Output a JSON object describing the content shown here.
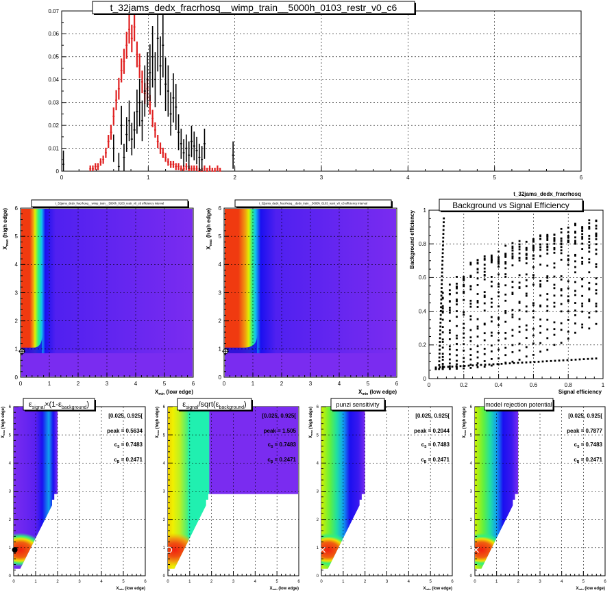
{
  "chart_data": [
    {
      "id": "hist",
      "type": "line",
      "title": "t_32jams_dedx_fracrhosq__wimp_train__5000h_0103_restr_v0_c6",
      "xlabel": "t_32jams_dedx_fracrhosq",
      "ylabel": "",
      "xlim": [
        0,
        6
      ],
      "ylim": [
        0,
        0.07
      ],
      "x_ticks": [
        "0",
        "1",
        "2",
        "3",
        "4",
        "5",
        "6"
      ],
      "y_ticks": [
        "0",
        "0.01",
        "0.02",
        "0.03",
        "0.04",
        "0.05",
        "0.06",
        "0.07"
      ],
      "grid": true,
      "series": [
        {
          "color": "#e02020",
          "x": [
            0.33,
            0.36,
            0.39,
            0.42,
            0.45,
            0.48,
            0.51,
            0.54,
            0.57,
            0.6,
            0.63,
            0.66,
            0.69,
            0.72,
            0.75,
            0.78,
            0.81,
            0.84,
            0.87,
            0.9,
            0.93,
            0.96,
            0.99,
            1.02,
            1.05,
            1.08,
            1.11,
            1.14,
            1.17,
            1.2,
            1.23,
            1.26,
            1.29,
            1.32,
            1.35,
            1.38,
            1.41,
            1.44,
            1.47,
            1.5,
            1.53,
            1.56,
            1.59,
            1.62,
            1.65,
            1.68,
            1.71,
            1.74,
            1.77,
            1.8,
            1.83
          ],
          "y": [
            0.001,
            0.001,
            0.002,
            0.002,
            0.004,
            0.005,
            0.008,
            0.013,
            0.017,
            0.024,
            0.031,
            0.036,
            0.044,
            0.048,
            0.055,
            0.062,
            0.058,
            0.063,
            0.051,
            0.046,
            0.039,
            0.034,
            0.036,
            0.029,
            0.023,
            0.018,
            0.013,
            0.01,
            0.008,
            0.006,
            0.004,
            0.003,
            0.003,
            0.002,
            0.002,
            0.001,
            0.001,
            0.002,
            0.001,
            0.001,
            0.001,
            0.001,
            0.0,
            0.0,
            0.001,
            0.0,
            0.001,
            0.0,
            0.0,
            0.001,
            0.0
          ]
        },
        {
          "color": "#000000",
          "x": [
            0.02,
            0.6,
            0.66,
            0.69,
            0.72,
            0.75,
            0.78,
            0.81,
            0.84,
            0.87,
            0.9,
            0.93,
            0.96,
            0.99,
            1.02,
            1.05,
            1.08,
            1.11,
            1.14,
            1.17,
            1.2,
            1.23,
            1.26,
            1.29,
            1.32,
            1.35,
            1.38,
            1.41,
            1.44,
            1.47,
            1.5,
            1.53,
            1.56,
            1.59,
            1.62,
            1.65,
            1.98
          ],
          "y": [
            0.003,
            0.01,
            0.002,
            0.02,
            0.006,
            0.016,
            0.022,
            0.014,
            0.018,
            0.026,
            0.03,
            0.022,
            0.035,
            0.04,
            0.043,
            0.05,
            0.04,
            0.058,
            0.046,
            0.055,
            0.038,
            0.035,
            0.025,
            0.032,
            0.028,
            0.017,
            0.012,
            0.008,
            0.01,
            0.007,
            0.013,
            0.011,
            0.009,
            0.006,
            0.005,
            0.012,
            0.007
          ]
        }
      ]
    },
    {
      "id": "eff-wimp",
      "type": "heatmap",
      "title": "t_32jams_dedx_fracrhosq__wimp_train__5000h_0103_restr_v0_c6 efficiency interval",
      "xlabel": "X_min (low edge)",
      "ylabel": "X_max (high edge)",
      "xlim": [
        0,
        6
      ],
      "ylim": [
        0,
        6
      ],
      "x_ticks": [
        "0",
        "1",
        "2",
        "3",
        "4",
        "5",
        "6"
      ],
      "y_ticks": [
        "0",
        "1",
        "2",
        "3",
        "4",
        "5",
        "6"
      ]
    },
    {
      "id": "eff-data",
      "type": "heatmap",
      "title": "t_32jams_dedx_fracrhosq__dedx_train__5000h_0103_restr_v0_c6 efficiency interval",
      "xlabel": "X_min (low edge)",
      "ylabel": "X_max (high edge)",
      "xlim": [
        0,
        6
      ],
      "ylim": [
        0,
        6
      ],
      "x_ticks": [
        "0",
        "1",
        "2",
        "3",
        "4",
        "5",
        "6"
      ],
      "y_ticks": [
        "0",
        "1",
        "2",
        "3",
        "4",
        "5",
        "6"
      ]
    },
    {
      "id": "roc",
      "type": "scatter",
      "title": "Background vs Signal Efficiency",
      "xlabel": "Signal efficiency",
      "ylabel": "Background efficiency",
      "xlim": [
        0,
        1
      ],
      "ylim": [
        0,
        1
      ],
      "x_ticks": [
        "0",
        "0.2",
        "0.4",
        "0.6",
        "0.8",
        "1"
      ],
      "y_ticks": [
        "0",
        "0.2",
        "0.4",
        "0.6",
        "0.8",
        "1"
      ]
    },
    {
      "id": "fom1",
      "type": "heatmap",
      "title_main": "ε",
      "title_sub": "signal",
      "title_mid": "×(1-ε",
      "title_sub2": "background",
      "title_end": ")",
      "interval": "[0.025, 0.925[",
      "peak": "peak = 0.5634",
      "cs": "c",
      "cs_sub": "S",
      "cs_val": " = 0.7483",
      "cb": "c",
      "cb_sub": "B",
      "cb_val": " = 0.2471",
      "xlabel_main": "X",
      "xlabel_sub": "min",
      "xlabel_rest": " (low edge)",
      "ylabel_main": "X",
      "ylabel_sub": "max",
      "ylabel_rest": " (high edge)",
      "xlim": [
        0,
        6
      ],
      "ylim": [
        0,
        6
      ],
      "x_ticks": [
        "0",
        "1",
        "2",
        "3",
        "4",
        "5",
        "6"
      ],
      "y_ticks": [
        "0",
        "1",
        "2",
        "3",
        "4",
        "5",
        "6"
      ]
    },
    {
      "id": "fom2",
      "type": "heatmap",
      "title_main": "ε",
      "title_sub": "signal",
      "title_mid": "/sqrt(ε",
      "title_sub2": "background",
      "title_end": ")",
      "interval": "[0.025, 0.925[",
      "peak": "peak = 1.505",
      "cs": "c",
      "cs_sub": "S",
      "cs_val": " = 0.7483",
      "cb": "c",
      "cb_sub": "B",
      "cb_val": " = 0.2471",
      "xlabel_main": "X",
      "xlabel_sub": "min",
      "xlabel_rest": " (low edge)",
      "ylabel_main": "X",
      "ylabel_sub": "max",
      "ylabel_rest": " (high edge)",
      "xlim": [
        0,
        6
      ],
      "ylim": [
        0,
        6
      ],
      "x_ticks": [
        "0",
        "1",
        "2",
        "3",
        "4",
        "5",
        "6"
      ],
      "y_ticks": [
        "0",
        "1",
        "2",
        "3",
        "4",
        "5",
        "6"
      ]
    },
    {
      "id": "fom3",
      "type": "heatmap",
      "title_main": "punzi sensitivity",
      "interval": "[0.025, 0.925[",
      "peak": "peak = 0.2044",
      "cs": "c",
      "cs_sub": "S",
      "cs_val": " = 0.7483",
      "cb": "c",
      "cb_sub": "B",
      "cb_val": " = 0.2471",
      "xlabel_main": "X",
      "xlabel_sub": "min",
      "xlabel_rest": " (low edge)",
      "ylabel_main": "X",
      "ylabel_sub": "max",
      "ylabel_rest": " (high edge)",
      "xlim": [
        0,
        6
      ],
      "ylim": [
        0,
        6
      ],
      "x_ticks": [
        "0",
        "1",
        "2",
        "3",
        "4",
        "5",
        "6"
      ],
      "y_ticks": [
        "0",
        "1",
        "2",
        "3",
        "4",
        "5",
        "6"
      ]
    },
    {
      "id": "fom4",
      "type": "heatmap",
      "title_main": "model rejection potential",
      "interval": "[0.025, 0.925[",
      "peak": "peak = 0.7877",
      "cs": "c",
      "cs_sub": "S",
      "cs_val": " = 0.7483",
      "cb": "c",
      "cb_sub": "B",
      "cb_val": " = 0.2471",
      "xlabel_main": "X",
      "xlabel_sub": "min",
      "xlabel_rest": " (low edge)",
      "ylabel_main": "X",
      "ylabel_sub": "max",
      "ylabel_rest": " (high edge)",
      "xlim": [
        0,
        6
      ],
      "ylim": [
        0,
        6
      ],
      "x_ticks": [
        "0",
        "1",
        "2",
        "3",
        "4",
        "5",
        "6"
      ],
      "y_ticks": [
        "0",
        "1",
        "2",
        "3",
        "4",
        "5",
        "6"
      ]
    }
  ],
  "colors": {
    "purple": "#7a2cf0",
    "blue": "#1a10f0",
    "cyan": "#10e0d0",
    "green": "#2ef080",
    "yellow": "#f0f000",
    "orange": "#f09010",
    "red": "#f03010"
  }
}
